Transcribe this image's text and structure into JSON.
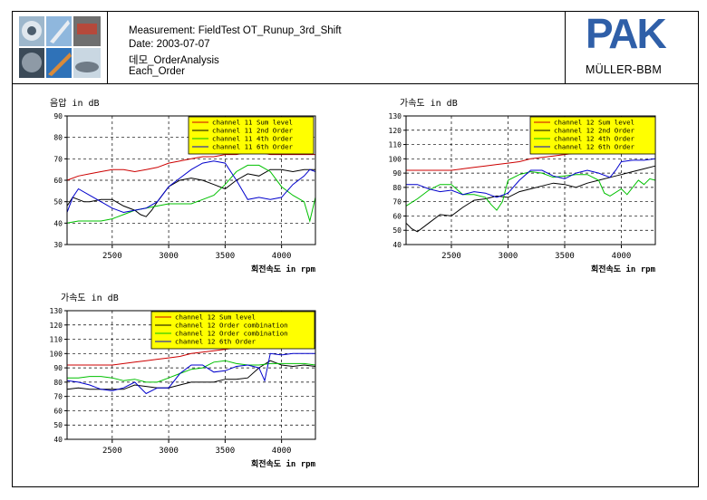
{
  "header": {
    "measurement": "Measurement: FieldTest  OT_Runup_3rd_Shift",
    "date": "Date: 2003-07-07",
    "analysis": "데모_OrderAnalysis",
    "section": "Each_Order"
  },
  "brand": {
    "logo_text": "PAK",
    "subtitle": "MÜLLER-BBM",
    "color": "#2f5fa8"
  },
  "chart_data": [
    {
      "type": "line",
      "title": "음압 in dB",
      "xlabel": "회전속도 in rpm",
      "xlim": [
        2100,
        4300
      ],
      "ylim": [
        30,
        90
      ],
      "xticks": [
        2500,
        3000,
        3500,
        4000
      ],
      "yticks": [
        30,
        40,
        50,
        60,
        70,
        80,
        90
      ],
      "grid": true,
      "legend": "top-right",
      "series": [
        {
          "name": "channel 11 Sum level",
          "color": "#cc0000",
          "x": [
            2100,
            2200,
            2300,
            2400,
            2500,
            2600,
            2700,
            2800,
            2900,
            3000,
            3100,
            3200,
            3300,
            3400,
            3500,
            3600,
            3700,
            3800,
            3900,
            4000,
            4100,
            4200,
            4300
          ],
          "y": [
            60,
            62,
            63,
            64,
            65,
            65,
            64,
            65,
            66,
            68,
            69,
            70,
            71,
            71,
            72,
            72,
            73,
            73,
            72,
            72,
            72,
            72,
            72
          ]
        },
        {
          "name": "channel 11 2nd Order",
          "color": "#000000",
          "x": [
            2100,
            2150,
            2200,
            2250,
            2300,
            2400,
            2500,
            2600,
            2700,
            2750,
            2800,
            2850,
            2900,
            3000,
            3100,
            3200,
            3300,
            3400,
            3500,
            3600,
            3700,
            3800,
            3900,
            4000,
            4100,
            4200,
            4300
          ],
          "y": [
            48,
            52,
            51,
            50,
            50,
            51,
            51,
            48,
            46,
            44,
            43,
            46,
            50,
            57,
            60,
            61,
            60,
            58,
            56,
            60,
            63,
            62,
            65,
            65,
            64,
            65,
            65
          ]
        },
        {
          "name": "channel 11 4th Order",
          "color": "#00c000",
          "x": [
            2100,
            2200,
            2300,
            2400,
            2500,
            2600,
            2700,
            2800,
            2900,
            3000,
            3100,
            3200,
            3300,
            3400,
            3500,
            3600,
            3700,
            3800,
            3900,
            4000,
            4100,
            4200,
            4250,
            4300
          ],
          "y": [
            40,
            41,
            41,
            41,
            42,
            44,
            46,
            47,
            48,
            49,
            49,
            49,
            51,
            53,
            58,
            64,
            67,
            67,
            64,
            57,
            53,
            50,
            41,
            52
          ]
        },
        {
          "name": "channel 11 6th Order",
          "color": "#0000cc",
          "x": [
            2100,
            2150,
            2200,
            2300,
            2400,
            2500,
            2600,
            2700,
            2800,
            2900,
            3000,
            3100,
            3200,
            3300,
            3400,
            3500,
            3600,
            3700,
            3800,
            3900,
            4000,
            4100,
            4200,
            4250,
            4300
          ],
          "y": [
            45,
            52,
            56,
            53,
            50,
            47,
            45,
            46,
            47,
            50,
            57,
            61,
            65,
            68,
            69,
            68,
            60,
            51,
            52,
            51,
            52,
            58,
            62,
            65,
            64
          ]
        }
      ]
    },
    {
      "type": "line",
      "title": "가속도 in dB",
      "xlabel": "회전속도 in rpm",
      "xlim": [
        2100,
        4300
      ],
      "ylim": [
        40,
        130
      ],
      "xticks": [
        2500,
        3000,
        3500,
        4000
      ],
      "yticks": [
        40,
        50,
        60,
        70,
        80,
        90,
        100,
        110,
        120,
        130
      ],
      "grid": true,
      "legend": "top-right",
      "series": [
        {
          "name": "channel 12 Sum level",
          "color": "#cc0000",
          "x": [
            2100,
            2200,
            2300,
            2400,
            2500,
            2600,
            2700,
            2800,
            2900,
            3000,
            3100,
            3200,
            3300,
            3400,
            3500,
            3600,
            3700,
            3800,
            3900,
            4000,
            4100,
            4200,
            4300
          ],
          "y": [
            92,
            92,
            92,
            92,
            92,
            93,
            94,
            95,
            96,
            97,
            98,
            100,
            101,
            102,
            103,
            104,
            105,
            106,
            107,
            108,
            108,
            108,
            109
          ]
        },
        {
          "name": "channel 12 2nd Order",
          "color": "#000000",
          "x": [
            2100,
            2150,
            2200,
            2300,
            2400,
            2500,
            2600,
            2700,
            2800,
            2900,
            3000,
            3100,
            3200,
            3300,
            3400,
            3500,
            3600,
            3700,
            3800,
            3900,
            4000,
            4100,
            4200,
            4300
          ],
          "y": [
            55,
            51,
            49,
            55,
            61,
            60,
            66,
            71,
            72,
            74,
            73,
            77,
            79,
            81,
            83,
            82,
            80,
            83,
            85,
            87,
            89,
            91,
            93,
            95
          ]
        },
        {
          "name": "channel 12 4th Order",
          "color": "#00c000",
          "x": [
            2100,
            2200,
            2300,
            2400,
            2500,
            2600,
            2700,
            2800,
            2850,
            2900,
            2950,
            3000,
            3100,
            3200,
            3300,
            3400,
            3500,
            3600,
            3700,
            3800,
            3850,
            3900,
            4000,
            4050,
            4100,
            4150,
            4200,
            4250,
            4300
          ],
          "y": [
            67,
            72,
            78,
            82,
            82,
            75,
            75,
            73,
            68,
            64,
            70,
            85,
            89,
            91,
            90,
            87,
            88,
            89,
            89,
            85,
            76,
            74,
            79,
            75,
            80,
            85,
            82,
            86,
            85
          ]
        },
        {
          "name": "channel 12 6th Order",
          "color": "#0000cc",
          "x": [
            2100,
            2200,
            2300,
            2400,
            2500,
            2600,
            2700,
            2800,
            2900,
            3000,
            3100,
            3200,
            3300,
            3400,
            3500,
            3600,
            3700,
            3800,
            3900,
            3950,
            4000,
            4100,
            4200,
            4300
          ],
          "y": [
            82,
            82,
            79,
            77,
            78,
            75,
            77,
            76,
            73,
            76,
            85,
            92,
            92,
            88,
            86,
            90,
            92,
            90,
            87,
            92,
            98,
            99,
            99,
            100
          ]
        }
      ]
    },
    {
      "type": "line",
      "title": "가속도 in dB",
      "xlabel": "회전속도 in rpm",
      "xlim": [
        2100,
        4300
      ],
      "ylim": [
        40,
        130
      ],
      "xticks": [
        2500,
        3000,
        3500,
        4000
      ],
      "yticks": [
        40,
        50,
        60,
        70,
        80,
        90,
        100,
        110,
        120,
        130
      ],
      "grid": true,
      "legend": "top-right",
      "series": [
        {
          "name": "channel 12 Sum level",
          "color": "#cc0000",
          "x": [
            2100,
            2200,
            2300,
            2400,
            2500,
            2600,
            2700,
            2800,
            2900,
            3000,
            3100,
            3200,
            3300,
            3400,
            3500,
            3600,
            3700,
            3800,
            3900,
            4000,
            4100,
            4200,
            4300
          ],
          "y": [
            92,
            92,
            92,
            92,
            92,
            93,
            94,
            95,
            96,
            97,
            98,
            100,
            101,
            102,
            103,
            104,
            105,
            106,
            107,
            108,
            108,
            108,
            109
          ]
        },
        {
          "name": "channel 12 Order combination",
          "color": "#000000",
          "x": [
            2100,
            2200,
            2300,
            2400,
            2500,
            2600,
            2700,
            2800,
            2900,
            3000,
            3100,
            3200,
            3300,
            3400,
            3500,
            3600,
            3700,
            3800,
            3900,
            4000,
            4100,
            4200,
            4300
          ],
          "y": [
            75,
            76,
            75,
            75,
            75,
            75,
            78,
            77,
            76,
            76,
            78,
            80,
            80,
            80,
            82,
            82,
            83,
            90,
            95,
            92,
            91,
            92,
            91
          ]
        },
        {
          "name": "channel 12 Order combination",
          "color": "#00c000",
          "x": [
            2100,
            2200,
            2300,
            2400,
            2500,
            2600,
            2700,
            2800,
            2900,
            3000,
            3100,
            3200,
            3300,
            3400,
            3500,
            3600,
            3700,
            3800,
            3900,
            4000,
            4100,
            4200,
            4300
          ],
          "y": [
            83,
            83,
            84,
            84,
            83,
            81,
            82,
            80,
            80,
            83,
            86,
            89,
            90,
            94,
            95,
            93,
            92,
            92,
            93,
            93,
            93,
            93,
            92
          ]
        },
        {
          "name": "channel 12 6th Order",
          "color": "#0000cc",
          "x": [
            2100,
            2200,
            2300,
            2400,
            2500,
            2600,
            2700,
            2800,
            2900,
            3000,
            3100,
            3200,
            3300,
            3400,
            3500,
            3600,
            3700,
            3800,
            3850,
            3900,
            4000,
            4100,
            4200,
            4300
          ],
          "y": [
            81,
            80,
            78,
            75,
            74,
            76,
            80,
            72,
            76,
            76,
            86,
            92,
            92,
            87,
            88,
            91,
            92,
            90,
            81,
            100,
            99,
            100,
            100,
            100
          ]
        }
      ]
    }
  ]
}
